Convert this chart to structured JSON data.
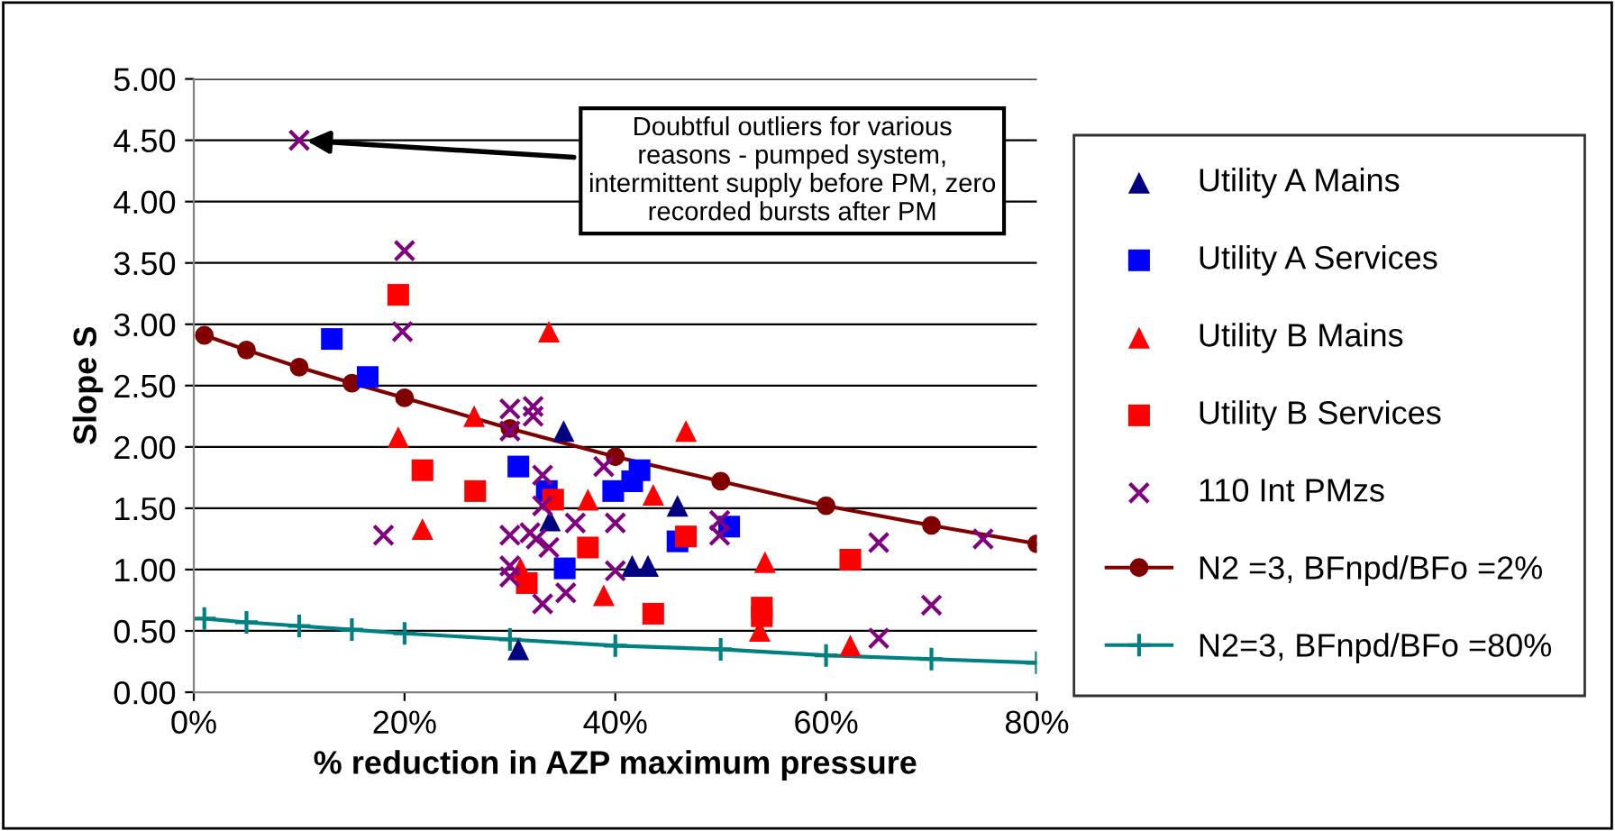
{
  "chart_data": {
    "type": "scatter",
    "xlabel": "% reduction in AZP maximum pressure",
    "ylabel": "Slope S",
    "xlim": [
      0,
      80
    ],
    "xticks": [
      {
        "value": 0,
        "label": "0%"
      },
      {
        "value": 20,
        "label": "20%"
      },
      {
        "value": 40,
        "label": "40%"
      },
      {
        "value": 60,
        "label": "60%"
      },
      {
        "value": 80,
        "label": "80%"
      }
    ],
    "ylim": [
      0,
      5
    ],
    "yticks": [
      {
        "value": 0,
        "label": "0.00"
      },
      {
        "value": 0.5,
        "label": "0.50"
      },
      {
        "value": 1,
        "label": "1.00"
      },
      {
        "value": 1.5,
        "label": "1.50"
      },
      {
        "value": 2,
        "label": "2.00"
      },
      {
        "value": 2.5,
        "label": "2.50"
      },
      {
        "value": 3,
        "label": "3.00"
      },
      {
        "value": 3.5,
        "label": "3.50"
      },
      {
        "value": 4,
        "label": "4.00"
      },
      {
        "value": 4.5,
        "label": "4.50"
      },
      {
        "value": 5,
        "label": "5.00"
      }
    ],
    "grid": "y",
    "legend": "right",
    "annotations": [
      {
        "text": "Doubtful outliers for various reasons - pumped system, intermittent supply before PM, zero recorded bursts after PM",
        "x": 10,
        "y": 4.5
      }
    ],
    "series": [
      {
        "name": "Utility A Mains",
        "color": "#000080",
        "marker": "triangle",
        "x": [
          30.8,
          33.8,
          35.1,
          41.6,
          43.1,
          45.9
        ],
        "values": [
          0.35,
          1.4,
          2.13,
          1.03,
          1.03,
          1.52
        ]
      },
      {
        "name": "Utility A Services",
        "color": "#0000ff",
        "marker": "square",
        "x": [
          13.1,
          16.5,
          30.8,
          33.5,
          35.2,
          39.8,
          41.6,
          42.3,
          45.9,
          50.8
        ],
        "values": [
          2.88,
          2.57,
          1.84,
          1.64,
          1.01,
          1.64,
          1.72,
          1.81,
          1.23,
          1.35
        ]
      },
      {
        "name": "Utility B Mains",
        "color": "#ff0000",
        "marker": "triangle",
        "x": [
          19.4,
          21.7,
          26.6,
          31.0,
          33.7,
          37.4,
          38.9,
          43.6,
          46.7,
          53.7,
          54.2,
          62.3
        ],
        "values": [
          2.08,
          1.33,
          2.25,
          1.01,
          2.94,
          1.57,
          0.79,
          1.61,
          2.13,
          0.5,
          1.06,
          0.38
        ]
      },
      {
        "name": "Utility B Services",
        "color": "#ff0000",
        "marker": "square",
        "x": [
          19.4,
          21.7,
          26.7,
          31.6,
          34.1,
          37.4,
          43.6,
          46.7,
          53.9,
          53.9,
          62.3
        ],
        "values": [
          3.24,
          1.81,
          1.64,
          0.89,
          1.57,
          1.18,
          0.64,
          1.27,
          0.69,
          0.62,
          1.08
        ]
      },
      {
        "name": "110 Int PMzs",
        "color": "#800080",
        "marker": "cross",
        "x": [
          10,
          20,
          19.8,
          18,
          30,
          30,
          32.2,
          32.2,
          30,
          30,
          30,
          31.9,
          32.5,
          33.1,
          33.1,
          33.7,
          33.1,
          35.3,
          36.2,
          38.9,
          40,
          40,
          49.9,
          49.9,
          65,
          74.9,
          70,
          65
        ],
        "values": [
          4.5,
          3.6,
          2.94,
          1.28,
          2.31,
          2.13,
          2.33,
          2.25,
          1.28,
          1.03,
          0.94,
          1.3,
          1.25,
          1.77,
          1.52,
          1.18,
          0.72,
          0.81,
          1.38,
          1.84,
          1.38,
          0.99,
          1.4,
          1.28,
          1.22,
          1.25,
          0.71,
          0.44
        ]
      },
      {
        "name": "N2 =3, BFnpd/BFo =2%",
        "type": "line",
        "color": "#800000",
        "marker": "circle",
        "x": [
          1,
          5,
          10,
          15,
          20,
          30,
          40,
          50,
          60,
          70,
          80
        ],
        "values": [
          2.91,
          2.79,
          2.65,
          2.52,
          2.4,
          2.15,
          1.92,
          1.72,
          1.52,
          1.36,
          1.21
        ]
      },
      {
        "name": "N2=3, BFnpd/BFo =80%",
        "type": "line",
        "color": "#008080",
        "marker": "cross",
        "x": [
          1,
          5,
          10,
          15,
          20,
          30,
          40,
          50,
          60,
          70,
          80
        ],
        "values": [
          0.6,
          0.57,
          0.54,
          0.51,
          0.48,
          0.43,
          0.38,
          0.35,
          0.3,
          0.27,
          0.24
        ]
      }
    ]
  }
}
